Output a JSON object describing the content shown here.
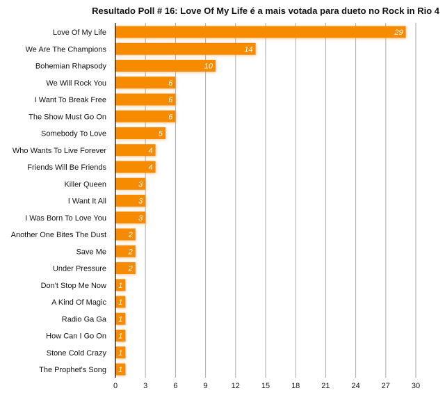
{
  "chart_data": {
    "type": "bar",
    "orientation": "horizontal",
    "title": "Resultado Poll # 16: Love Of My Life é a mais votada para dueto no Rock in Rio 4",
    "categories": [
      "Love Of My Life",
      "We Are The Champions",
      "Bohemian Rhapsody",
      "We Will Rock You",
      "I Want To Break Free",
      "The Show Must Go On",
      "Somebody To Love",
      "Who Wants To Live Forever",
      "Friends Will Be Friends",
      "Killer Queen",
      "I Want It All",
      "I Was Born To Love You",
      "Another One Bites The Dust",
      "Save Me",
      "Under Pressure",
      "Don't Stop Me Now",
      "A Kind Of Magic",
      "Radio Ga Ga",
      "How Can I Go On",
      "Stone Cold Crazy",
      "The Prophet's Song"
    ],
    "values": [
      29,
      14,
      10,
      6,
      6,
      6,
      5,
      4,
      4,
      3,
      3,
      3,
      2,
      2,
      2,
      1,
      1,
      1,
      1,
      1,
      1
    ],
    "xlim": [
      0,
      30
    ],
    "xticks": [
      0,
      3,
      6,
      9,
      12,
      15,
      18,
      21,
      24,
      27,
      30
    ],
    "grid": "vertical",
    "bar_color": "#F68B00",
    "data_labels": true
  }
}
